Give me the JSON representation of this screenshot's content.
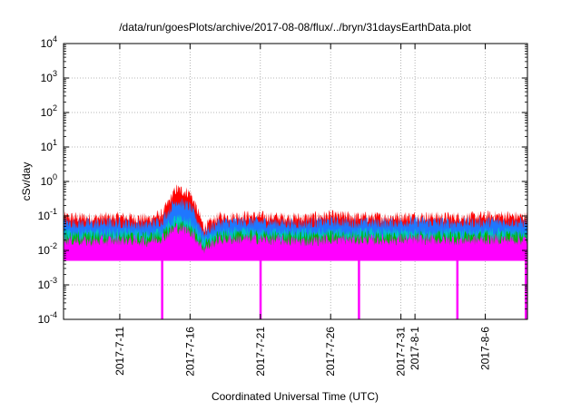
{
  "chart_data": {
    "type": "area",
    "title": "/data/run/goesPlots/archive/2017-08-08/flux/../bryn/31daysEarthData.plot",
    "xlabel": "Coordinated Universal Time (UTC)",
    "ylabel": "cSv/day",
    "yscale": "log",
    "ylim": [
      0.0001,
      10000
    ],
    "xlim": [
      "2017-07-07",
      "2017-08-09"
    ],
    "grid": true,
    "y_ticks": [
      {
        "value": 0.0001,
        "label": "10-4",
        "base": "10",
        "exp": "-4"
      },
      {
        "value": 0.001,
        "label": "10-3",
        "base": "10",
        "exp": "-3"
      },
      {
        "value": 0.01,
        "label": "10-2",
        "base": "10",
        "exp": "-2"
      },
      {
        "value": 0.1,
        "label": "10-1",
        "base": "10",
        "exp": "-1"
      },
      {
        "value": 1,
        "label": "100",
        "base": "10",
        "exp": "0"
      },
      {
        "value": 10,
        "label": "101",
        "base": "10",
        "exp": "1"
      },
      {
        "value": 100,
        "label": "102",
        "base": "10",
        "exp": "2"
      },
      {
        "value": 1000,
        "label": "103",
        "base": "10",
        "exp": "3"
      },
      {
        "value": 10000,
        "label": "104",
        "base": "10",
        "exp": "4"
      }
    ],
    "x_ticks": [
      {
        "date": "2017-07-11",
        "label": "2017-7-11"
      },
      {
        "date": "2017-07-16",
        "label": "2017-7-16"
      },
      {
        "date": "2017-07-21",
        "label": "2017-7-21"
      },
      {
        "date": "2017-07-26",
        "label": "2017-7-26"
      },
      {
        "date": "2017-07-31",
        "label": "2017-7-31"
      },
      {
        "date": "2017-08-01",
        "label": "2017-8-1"
      },
      {
        "date": "2017-08-06",
        "label": "2017-8-6"
      }
    ],
    "series": [
      {
        "color": "#ff0000",
        "x": [
          "2017-07-07",
          "2017-07-09",
          "2017-07-11",
          "2017-07-13",
          "2017-07-14",
          "2017-07-15",
          "2017-07-16",
          "2017-07-17",
          "2017-07-18",
          "2017-07-20",
          "2017-07-22",
          "2017-07-24",
          "2017-07-26",
          "2017-07-28",
          "2017-07-30",
          "2017-08-01",
          "2017-08-03",
          "2017-08-05",
          "2017-08-07",
          "2017-08-09"
        ],
        "values": [
          0.1,
          0.095,
          0.1,
          0.09,
          0.12,
          0.65,
          0.5,
          0.05,
          0.1,
          0.11,
          0.1,
          0.095,
          0.11,
          0.1,
          0.1,
          0.105,
          0.1,
          0.1,
          0.11,
          0.1
        ]
      },
      {
        "color": "#1f77ff",
        "x": [
          "2017-07-07",
          "2017-07-09",
          "2017-07-11",
          "2017-07-13",
          "2017-07-14",
          "2017-07-15",
          "2017-07-16",
          "2017-07-17",
          "2017-07-18",
          "2017-07-20",
          "2017-07-22",
          "2017-07-24",
          "2017-07-26",
          "2017-07-28",
          "2017-07-30",
          "2017-08-01",
          "2017-08-03",
          "2017-08-05",
          "2017-08-07",
          "2017-08-09"
        ],
        "values": [
          0.07,
          0.065,
          0.07,
          0.06,
          0.08,
          0.3,
          0.2,
          0.035,
          0.07,
          0.075,
          0.07,
          0.065,
          0.075,
          0.07,
          0.07,
          0.075,
          0.07,
          0.07,
          0.075,
          0.07
        ]
      },
      {
        "color": "#00c8c8",
        "x": [
          "2017-07-07",
          "2017-07-09",
          "2017-07-11",
          "2017-07-13",
          "2017-07-14",
          "2017-07-15",
          "2017-07-16",
          "2017-07-17",
          "2017-07-18",
          "2017-07-20",
          "2017-07-22",
          "2017-07-24",
          "2017-07-26",
          "2017-07-28",
          "2017-07-30",
          "2017-08-01",
          "2017-08-03",
          "2017-08-05",
          "2017-08-07",
          "2017-08-09"
        ],
        "values": [
          0.035,
          0.033,
          0.035,
          0.032,
          0.04,
          0.09,
          0.07,
          0.02,
          0.035,
          0.037,
          0.035,
          0.033,
          0.036,
          0.035,
          0.035,
          0.036,
          0.035,
          0.035,
          0.036,
          0.035
        ]
      },
      {
        "color": "#00b400",
        "x": [
          "2017-07-07",
          "2017-07-09",
          "2017-07-11",
          "2017-07-13",
          "2017-07-14",
          "2017-07-15",
          "2017-07-16",
          "2017-07-17",
          "2017-07-18",
          "2017-07-20",
          "2017-07-22",
          "2017-07-24",
          "2017-07-26",
          "2017-07-28",
          "2017-07-30",
          "2017-08-01",
          "2017-08-03",
          "2017-08-05",
          "2017-08-07",
          "2017-08-09"
        ],
        "values": [
          0.028,
          0.027,
          0.028,
          0.026,
          0.03,
          0.06,
          0.05,
          0.015,
          0.028,
          0.03,
          0.028,
          0.027,
          0.029,
          0.028,
          0.028,
          0.029,
          0.028,
          0.028,
          0.029,
          0.028
        ]
      },
      {
        "color": "#ff00ff",
        "x": [
          "2017-07-07",
          "2017-07-09",
          "2017-07-11",
          "2017-07-13",
          "2017-07-14",
          "2017-07-15",
          "2017-07-16",
          "2017-07-17",
          "2017-07-18",
          "2017-07-20",
          "2017-07-22",
          "2017-07-24",
          "2017-07-26",
          "2017-07-28",
          "2017-07-30",
          "2017-08-01",
          "2017-08-03",
          "2017-08-05",
          "2017-08-07",
          "2017-08-09"
        ],
        "values": [
          0.022,
          0.02,
          0.022,
          0.02,
          0.025,
          0.05,
          0.04,
          0.012,
          0.022,
          0.024,
          0.022,
          0.02,
          0.023,
          0.022,
          0.022,
          0.023,
          0.022,
          0.022,
          0.023,
          0.022
        ],
        "floor": 0.005,
        "dropouts": [
          "2017-07-14",
          "2017-07-21",
          "2017-07-28",
          "2017-08-04",
          "2017-08-09"
        ]
      }
    ]
  }
}
